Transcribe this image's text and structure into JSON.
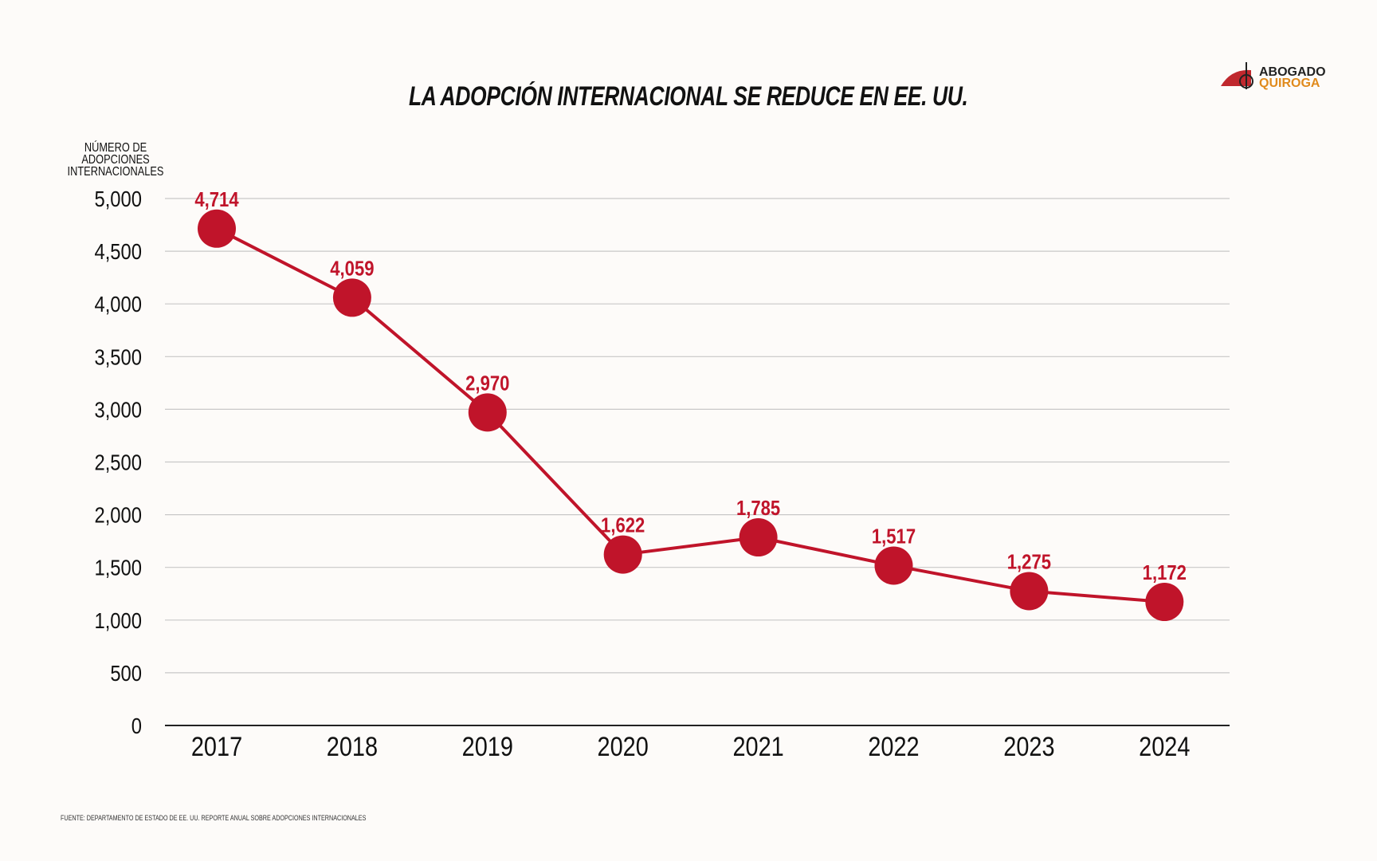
{
  "chart_data": {
    "type": "line",
    "title": "LA ADOPCIÓN INTERNACIONAL SE REDUCE EN EE. UU.",
    "ylabel": "NÚMERO DE ADOPCIONES INTERNACIONALES",
    "xlabel": "",
    "categories": [
      "2017",
      "2018",
      "2019",
      "2020",
      "2021",
      "2022",
      "2023",
      "2024"
    ],
    "values": [
      4714,
      4059,
      2970,
      1622,
      1785,
      1517,
      1275,
      1172
    ],
    "data_labels": [
      "4,714",
      "4,059",
      "2,970",
      "1,622",
      "1,785",
      "1,517",
      "1,275",
      "1,172"
    ],
    "ylim": [
      0,
      5000
    ],
    "yticks": [
      0,
      500,
      1000,
      1500,
      2000,
      2500,
      3000,
      3500,
      4000,
      4500,
      5000
    ],
    "ytick_labels": [
      "0",
      "500",
      "1,000",
      "1,500",
      "2,000",
      "2,500",
      "3,000",
      "3,500",
      "4,000",
      "4,500",
      "5,000"
    ],
    "grid": true,
    "color": "#c0142a"
  },
  "source": "FUENTE: DEPARTAMENTO DE ESTADO DE EE. UU. REPORTE ANUAL SOBRE ADOPCIONES INTERNACIONALES",
  "logo": {
    "line1": "ABOGADO",
    "line2": "QUIROGA"
  }
}
